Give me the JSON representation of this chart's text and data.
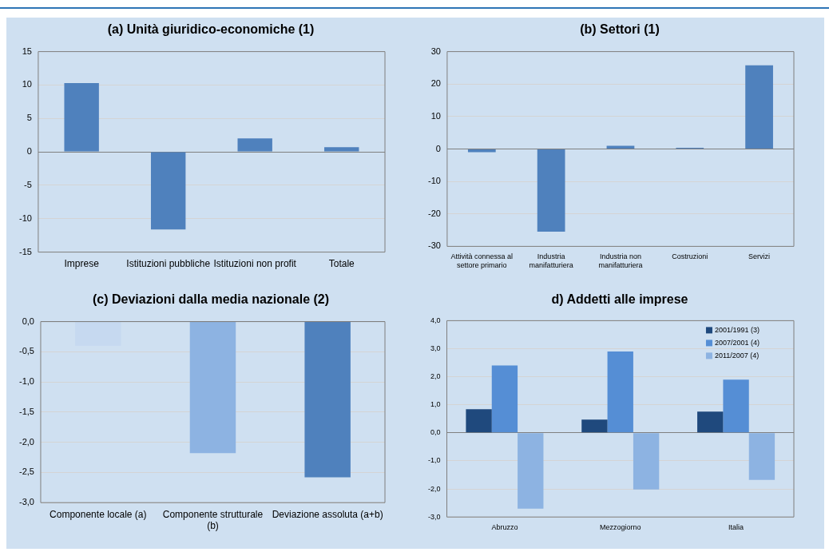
{
  "chart_data": [
    {
      "type": "bar",
      "title": "(a) Unità giuridico-economiche (1)",
      "categories": [
        "Imprese",
        "Istituzioni pubbliche",
        "Istituzioni non profit",
        "Totale"
      ],
      "values": [
        10.3,
        -11.6,
        2.0,
        0.7
      ],
      "color": "#4f81bd",
      "ylim": [
        -15,
        15
      ],
      "yticks": [
        -15,
        -10,
        -5,
        0,
        5,
        10,
        15
      ],
      "grid": "y"
    },
    {
      "type": "bar",
      "title": "(b) Settori (1)",
      "categories": [
        "Attività connessa al settore primario",
        "Industria manifatturiera",
        "Industria non manifatturiera",
        "Costruzioni",
        "Servizi"
      ],
      "values": [
        -1.0,
        -25.5,
        1.0,
        0.4,
        25.8
      ],
      "color": "#4f81bd",
      "ylim": [
        -30,
        30
      ],
      "yticks": [
        -30,
        -20,
        -10,
        0,
        10,
        20,
        30
      ],
      "grid": "y"
    },
    {
      "type": "bar",
      "title": "(c) Deviazioni dalla media nazionale (2)",
      "categories": [
        "Componente locale (a)",
        "Componente strutturale (b)",
        "Deviazione assoluta (a+b)"
      ],
      "values": [
        -0.4,
        -2.18,
        -2.58
      ],
      "colors": [
        "#c6d9f0",
        "#8db3e2",
        "#4f81bd"
      ],
      "ylim": [
        -3,
        0
      ],
      "yticks": [
        {
          "value": -3,
          "label": "-3,0"
        },
        {
          "value": -2.5,
          "label": "-2,5"
        },
        {
          "value": -2,
          "label": "-2,0"
        },
        {
          "value": -1.5,
          "label": "-1,5"
        },
        {
          "value": -1,
          "label": "-1,0"
        },
        {
          "value": -0.5,
          "label": "-0,5"
        },
        {
          "value": 0,
          "label": "0,0"
        }
      ],
      "grid": "y"
    },
    {
      "type": "bar",
      "title": "d) Addetti alle imprese",
      "categories": [
        "Abruzzo",
        "Mezzogiorno",
        "Italia"
      ],
      "series": [
        {
          "name": "2001/1991 (3)",
          "color": "#1f497d",
          "values": [
            0.84,
            0.47,
            0.76
          ]
        },
        {
          "name": "2007/2001 (4)",
          "color": "#558ed5",
          "values": [
            2.4,
            2.9,
            1.9
          ]
        },
        {
          "name": "2011/2007 (4)",
          "color": "#8db3e2",
          "values": [
            -2.7,
            -2.02,
            -1.68
          ]
        }
      ],
      "ylim": [
        -3,
        4
      ],
      "yticks": [
        {
          "value": -3,
          "label": "-3,0"
        },
        {
          "value": -2,
          "label": "-2,0"
        },
        {
          "value": -1,
          "label": "-1,0"
        },
        {
          "value": 0,
          "label": "0,0"
        },
        {
          "value": 1,
          "label": "1,0"
        },
        {
          "value": 2,
          "label": "2,0"
        },
        {
          "value": 3,
          "label": "3,0"
        },
        {
          "value": 4,
          "label": "4,0"
        }
      ],
      "grid": "y",
      "legend": "top right"
    }
  ]
}
